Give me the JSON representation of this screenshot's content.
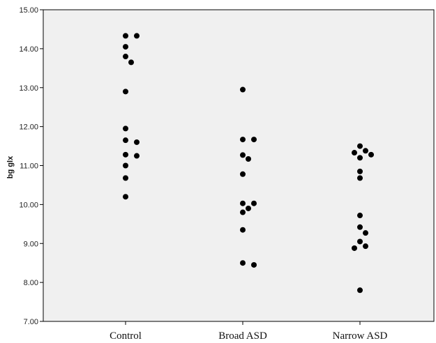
{
  "chart_data": {
    "type": "scatter",
    "ylabel": "bg glx",
    "xlabel": "",
    "categories": [
      "Control",
      "Broad ASD",
      "Narrow ASD"
    ],
    "ylim": [
      7.0,
      15.0
    ],
    "yticks": [
      "7.00",
      "8.00",
      "9.00",
      "10.00",
      "11.00",
      "12.00",
      "13.00",
      "14.00",
      "15.00"
    ],
    "grid": false,
    "plot_background": "#f0f0f0",
    "marker_color": "#000000",
    "points": [
      {
        "category": "Control",
        "y": 14.33
      },
      {
        "category": "Control",
        "y": 14.33
      },
      {
        "category": "Control",
        "y": 14.05
      },
      {
        "category": "Control",
        "y": 13.8
      },
      {
        "category": "Control",
        "y": 13.65
      },
      {
        "category": "Control",
        "y": 12.9
      },
      {
        "category": "Control",
        "y": 11.95
      },
      {
        "category": "Control",
        "y": 11.65
      },
      {
        "category": "Control",
        "y": 11.6
      },
      {
        "category": "Control",
        "y": 11.28
      },
      {
        "category": "Control",
        "y": 11.25
      },
      {
        "category": "Control",
        "y": 11.0
      },
      {
        "category": "Control",
        "y": 10.68
      },
      {
        "category": "Control",
        "y": 10.2
      },
      {
        "category": "Broad ASD",
        "y": 12.95
      },
      {
        "category": "Broad ASD",
        "y": 11.67
      },
      {
        "category": "Broad ASD",
        "y": 11.67
      },
      {
        "category": "Broad ASD",
        "y": 11.27
      },
      {
        "category": "Broad ASD",
        "y": 11.17
      },
      {
        "category": "Broad ASD",
        "y": 10.78
      },
      {
        "category": "Broad ASD",
        "y": 10.03
      },
      {
        "category": "Broad ASD",
        "y": 10.03
      },
      {
        "category": "Broad ASD",
        "y": 9.9
      },
      {
        "category": "Broad ASD",
        "y": 9.8
      },
      {
        "category": "Broad ASD",
        "y": 9.35
      },
      {
        "category": "Broad ASD",
        "y": 8.5
      },
      {
        "category": "Broad ASD",
        "y": 8.45
      },
      {
        "category": "Narrow ASD",
        "y": 11.5
      },
      {
        "category": "Narrow ASD",
        "y": 11.38
      },
      {
        "category": "Narrow ASD",
        "y": 11.33
      },
      {
        "category": "Narrow ASD",
        "y": 11.28
      },
      {
        "category": "Narrow ASD",
        "y": 11.2
      },
      {
        "category": "Narrow ASD",
        "y": 10.85
      },
      {
        "category": "Narrow ASD",
        "y": 10.68
      },
      {
        "category": "Narrow ASD",
        "y": 9.72
      },
      {
        "category": "Narrow ASD",
        "y": 9.42
      },
      {
        "category": "Narrow ASD",
        "y": 9.27
      },
      {
        "category": "Narrow ASD",
        "y": 9.05
      },
      {
        "category": "Narrow ASD",
        "y": 8.93
      },
      {
        "category": "Narrow ASD",
        "y": 8.88
      },
      {
        "category": "Narrow ASD",
        "y": 7.8
      }
    ]
  }
}
